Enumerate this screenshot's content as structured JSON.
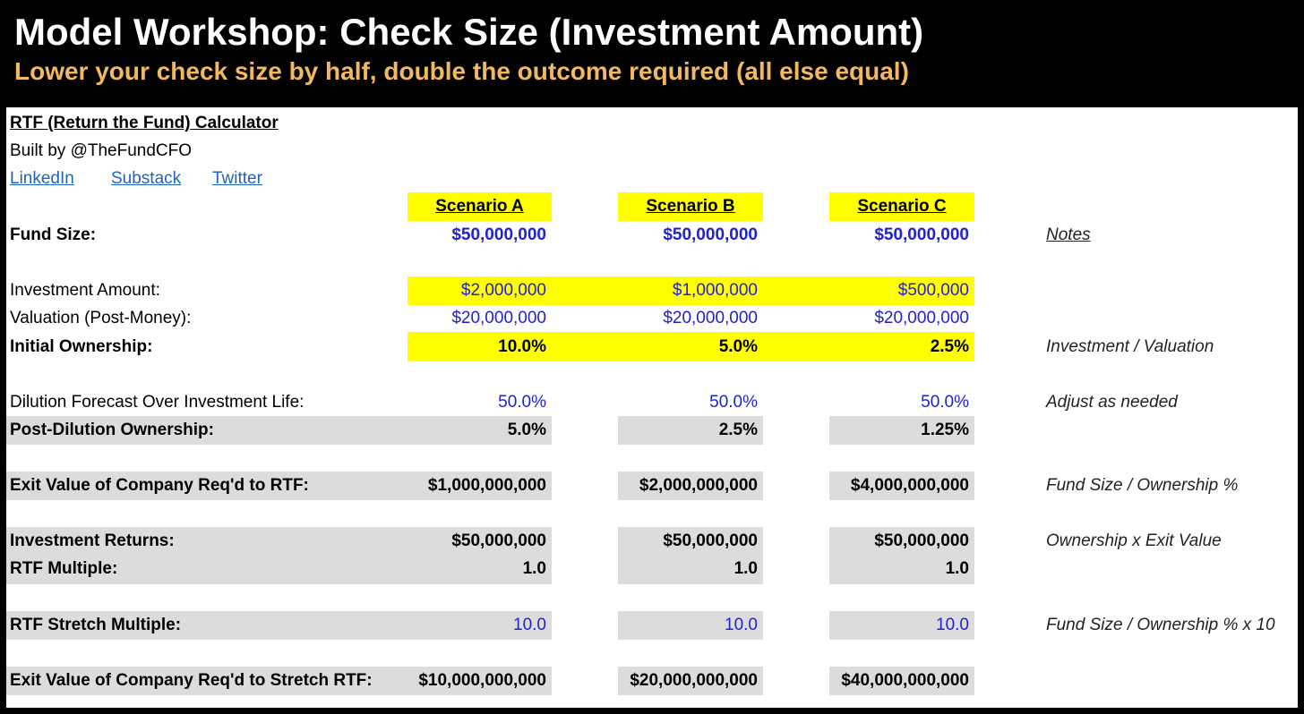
{
  "header": {
    "title": "Model Workshop: Check Size (Investment Amount)",
    "subtitle": "Lower your check size by half, double the outcome required (all else equal)"
  },
  "sheet": {
    "calc_title": "RTF (Return the Fund) Calculator",
    "built_by": "Built by @TheFundCFO",
    "links": [
      "LinkedIn",
      "Substack",
      "Twitter"
    ],
    "scenarios": [
      "Scenario A",
      "Scenario B",
      "Scenario C"
    ],
    "notes_header": "Notes",
    "rows": {
      "fund_size": {
        "label": "Fund Size:",
        "values": [
          "$50,000,000",
          "$50,000,000",
          "$50,000,000"
        ],
        "note": ""
      },
      "investment_amount": {
        "label": "Investment Amount:",
        "values": [
          "$2,000,000",
          "$1,000,000",
          "$500,000"
        ],
        "note": ""
      },
      "valuation": {
        "label": "Valuation (Post-Money):",
        "values": [
          "$20,000,000",
          "$20,000,000",
          "$20,000,000"
        ],
        "note": ""
      },
      "initial_ownership": {
        "label": "Initial Ownership:",
        "values": [
          "10.0%",
          "5.0%",
          "2.5%"
        ],
        "note": "Investment / Valuation"
      },
      "dilution": {
        "label": "Dilution Forecast Over Investment Life:",
        "values": [
          "50.0%",
          "50.0%",
          "50.0%"
        ],
        "note": "Adjust as needed"
      },
      "post_dilution": {
        "label": "Post-Dilution Ownership:",
        "values": [
          "5.0%",
          "2.5%",
          "1.25%"
        ],
        "note": ""
      },
      "exit_value": {
        "label": "Exit Value of Company Req'd to RTF:",
        "values": [
          "$1,000,000,000",
          "$2,000,000,000",
          "$4,000,000,000"
        ],
        "note": "Fund Size / Ownership %"
      },
      "investment_returns": {
        "label": "Investment Returns:",
        "values": [
          "$50,000,000",
          "$50,000,000",
          "$50,000,000"
        ],
        "note": "Ownership x Exit Value"
      },
      "rtf_multiple": {
        "label": "RTF Multiple:",
        "values": [
          "1.0",
          "1.0",
          "1.0"
        ],
        "note": ""
      },
      "stretch_multiple": {
        "label": "RTF Stretch Multiple:",
        "values": [
          "10.0",
          "10.0",
          "10.0"
        ],
        "note": "Fund Size / Ownership % x 10"
      },
      "stretch_exit": {
        "label": "Exit Value of Company Req'd to Stretch RTF:",
        "values": [
          "$10,000,000,000",
          "$20,000,000,000",
          "$40,000,000,000"
        ],
        "note": ""
      }
    }
  }
}
